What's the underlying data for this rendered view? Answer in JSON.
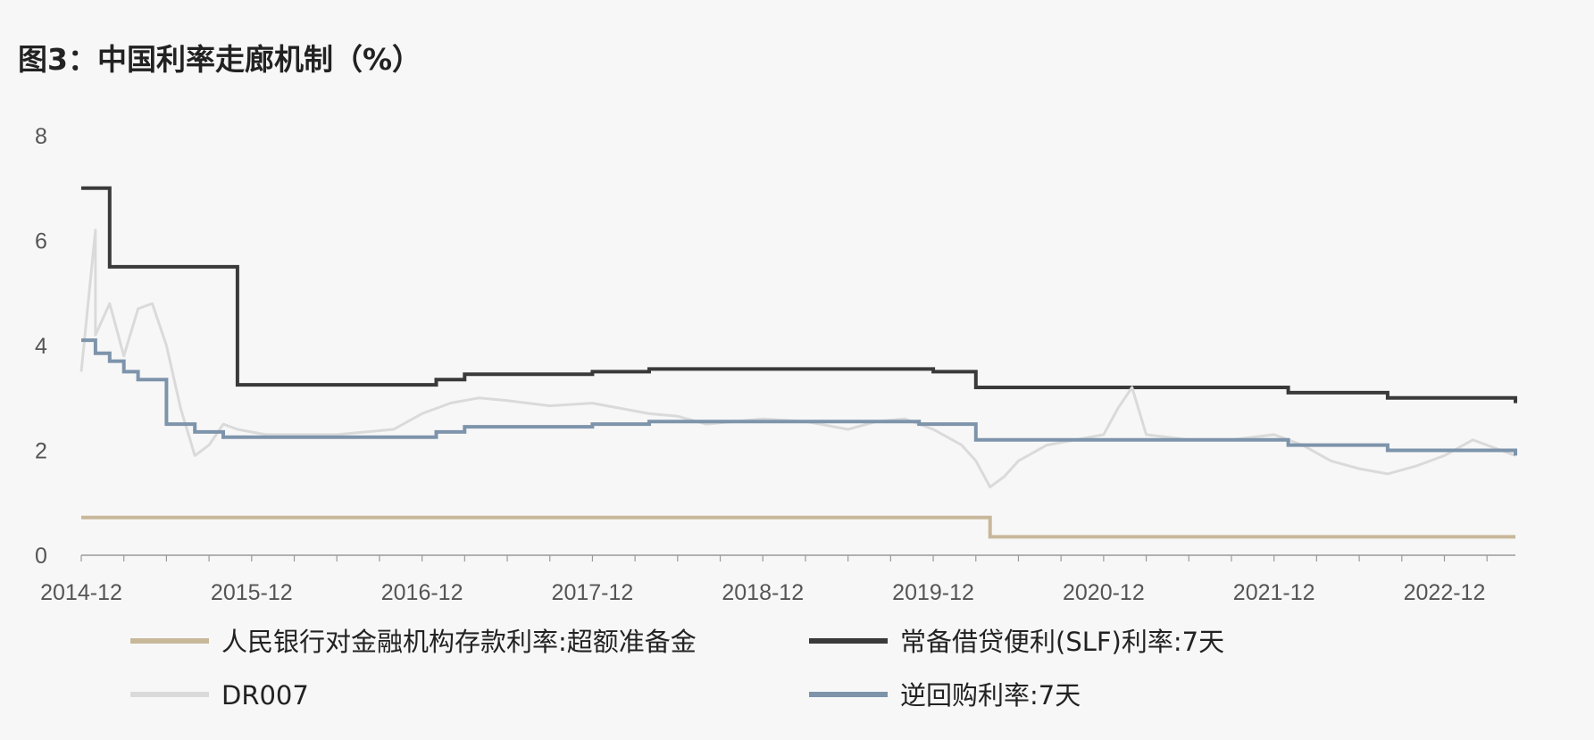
{
  "chart_data": {
    "type": "line",
    "title": "图3：中国利率走廊机制（%）",
    "xlabel": "",
    "ylabel": "",
    "ylim": [
      0,
      8
    ],
    "y_ticks": [
      "0",
      "2",
      "4",
      "6",
      "8"
    ],
    "x_range": [
      "2014-12",
      "2023-05"
    ],
    "x_tick_labels": [
      "2014-12",
      "2015-12",
      "2016-12",
      "2017-12",
      "2018-12",
      "2019-12",
      "2020-12",
      "2021-12",
      "2022-12"
    ],
    "grid": false,
    "legend_position": "bottom",
    "series": [
      {
        "name": "人民银行对金融机构存款利率:超额准备金",
        "color": "#c8b89a",
        "step": true,
        "points": [
          [
            "2014-12",
            0.72
          ],
          [
            "2020-04",
            0.72
          ],
          [
            "2020-04",
            0.35
          ],
          [
            "2023-05",
            0.35
          ]
        ]
      },
      {
        "name": "常备借贷便利(SLF)利率:7天",
        "color": "#3a3a3a",
        "step": true,
        "points": [
          [
            "2014-12",
            7.0
          ],
          [
            "2015-02",
            7.0
          ],
          [
            "2015-02",
            5.5
          ],
          [
            "2015-11",
            5.5
          ],
          [
            "2015-11",
            3.25
          ],
          [
            "2017-01",
            3.25
          ],
          [
            "2017-01",
            3.35
          ],
          [
            "2017-03",
            3.35
          ],
          [
            "2017-03",
            3.45
          ],
          [
            "2017-12",
            3.45
          ],
          [
            "2017-12",
            3.5
          ],
          [
            "2018-04",
            3.5
          ],
          [
            "2018-04",
            3.55
          ],
          [
            "2019-12",
            3.55
          ],
          [
            "2019-12",
            3.5
          ],
          [
            "2020-03",
            3.5
          ],
          [
            "2020-03",
            3.2
          ],
          [
            "2022-01",
            3.2
          ],
          [
            "2022-01",
            3.1
          ],
          [
            "2022-08",
            3.1
          ],
          [
            "2022-08",
            3.0
          ],
          [
            "2023-05",
            3.0
          ],
          [
            "2023-05",
            2.9
          ]
        ]
      },
      {
        "name": "DR007",
        "color": "#dadada",
        "step": false,
        "points": [
          [
            "2014-12",
            3.5
          ],
          [
            "2015-01",
            6.2
          ],
          [
            "2015-01",
            4.2
          ],
          [
            "2015-02",
            4.8
          ],
          [
            "2015-03",
            3.8
          ],
          [
            "2015-04",
            4.7
          ],
          [
            "2015-05",
            4.8
          ],
          [
            "2015-06",
            4.0
          ],
          [
            "2015-07",
            2.8
          ],
          [
            "2015-08",
            1.9
          ],
          [
            "2015-09",
            2.1
          ],
          [
            "2015-10",
            2.5
          ],
          [
            "2015-11",
            2.4
          ],
          [
            "2016-01",
            2.3
          ],
          [
            "2016-06",
            2.3
          ],
          [
            "2016-10",
            2.4
          ],
          [
            "2016-12",
            2.7
          ],
          [
            "2017-02",
            2.9
          ],
          [
            "2017-04",
            3.0
          ],
          [
            "2017-06",
            2.95
          ],
          [
            "2017-09",
            2.85
          ],
          [
            "2017-12",
            2.9
          ],
          [
            "2018-02",
            2.8
          ],
          [
            "2018-04",
            2.7
          ],
          [
            "2018-06",
            2.65
          ],
          [
            "2018-08",
            2.5
          ],
          [
            "2018-10",
            2.55
          ],
          [
            "2018-12",
            2.6
          ],
          [
            "2019-03",
            2.55
          ],
          [
            "2019-06",
            2.4
          ],
          [
            "2019-08",
            2.55
          ],
          [
            "2019-10",
            2.6
          ],
          [
            "2019-12",
            2.4
          ],
          [
            "2020-02",
            2.1
          ],
          [
            "2020-03",
            1.8
          ],
          [
            "2020-04",
            1.3
          ],
          [
            "2020-05",
            1.5
          ],
          [
            "2020-06",
            1.8
          ],
          [
            "2020-08",
            2.1
          ],
          [
            "2020-10",
            2.2
          ],
          [
            "2020-12",
            2.3
          ],
          [
            "2021-01",
            2.8
          ],
          [
            "2021-02",
            3.2
          ],
          [
            "2021-03",
            2.3
          ],
          [
            "2021-06",
            2.2
          ],
          [
            "2021-09",
            2.2
          ],
          [
            "2021-12",
            2.3
          ],
          [
            "2022-02",
            2.1
          ],
          [
            "2022-04",
            1.8
          ],
          [
            "2022-06",
            1.65
          ],
          [
            "2022-08",
            1.55
          ],
          [
            "2022-10",
            1.7
          ],
          [
            "2022-12",
            1.9
          ],
          [
            "2023-02",
            2.2
          ],
          [
            "2023-04",
            2.0
          ],
          [
            "2023-05",
            1.9
          ]
        ]
      },
      {
        "name": "逆回购利率:7天",
        "color": "#7d94ab",
        "step": true,
        "points": [
          [
            "2014-12",
            4.1
          ],
          [
            "2015-01",
            4.1
          ],
          [
            "2015-01",
            3.85
          ],
          [
            "2015-02",
            3.85
          ],
          [
            "2015-02",
            3.7
          ],
          [
            "2015-03",
            3.7
          ],
          [
            "2015-03",
            3.5
          ],
          [
            "2015-04",
            3.5
          ],
          [
            "2015-04",
            3.35
          ],
          [
            "2015-06",
            3.35
          ],
          [
            "2015-06",
            2.5
          ],
          [
            "2015-08",
            2.5
          ],
          [
            "2015-08",
            2.35
          ],
          [
            "2015-10",
            2.35
          ],
          [
            "2015-10",
            2.25
          ],
          [
            "2017-01",
            2.25
          ],
          [
            "2017-01",
            2.35
          ],
          [
            "2017-03",
            2.35
          ],
          [
            "2017-03",
            2.45
          ],
          [
            "2017-12",
            2.45
          ],
          [
            "2017-12",
            2.5
          ],
          [
            "2018-04",
            2.5
          ],
          [
            "2018-04",
            2.55
          ],
          [
            "2019-11",
            2.55
          ],
          [
            "2019-11",
            2.5
          ],
          [
            "2020-03",
            2.5
          ],
          [
            "2020-03",
            2.2
          ],
          [
            "2022-01",
            2.2
          ],
          [
            "2022-01",
            2.1
          ],
          [
            "2022-08",
            2.1
          ],
          [
            "2022-08",
            2.0
          ],
          [
            "2023-05",
            2.0
          ],
          [
            "2023-05",
            1.9
          ]
        ]
      }
    ]
  }
}
